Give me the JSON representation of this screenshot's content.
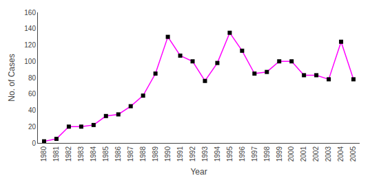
{
  "chart_data": {
    "type": "line",
    "xlabel": "Year",
    "ylabel": "No. of Cases",
    "x": [
      1980,
      1981,
      1982,
      1983,
      1984,
      1985,
      1986,
      1987,
      1988,
      1989,
      1990,
      1991,
      1992,
      1993,
      1994,
      1995,
      1996,
      1997,
      1998,
      1999,
      2000,
      2001,
      2002,
      2003,
      2004,
      2005
    ],
    "values": [
      2,
      5,
      20,
      20,
      22,
      33,
      35,
      45,
      58,
      85,
      130,
      107,
      100,
      76,
      98,
      135,
      113,
      85,
      87,
      100,
      100,
      83,
      83,
      78,
      124,
      78
    ],
    "color": "#ff00ff",
    "marker": "square",
    "xlim": [
      1979.5,
      2005.5
    ],
    "xticks": [
      1980,
      1981,
      1982,
      1983,
      1984,
      1985,
      1986,
      1987,
      1988,
      1989,
      1990,
      1991,
      1992,
      1993,
      1994,
      1995,
      1996,
      1997,
      1998,
      1999,
      2000,
      2001,
      2002,
      2003,
      2004,
      2005
    ],
    "ylim": [
      0,
      160
    ],
    "yticks": [
      0,
      20,
      40,
      60,
      80,
      100,
      120,
      140,
      160
    ],
    "grid": false
  }
}
